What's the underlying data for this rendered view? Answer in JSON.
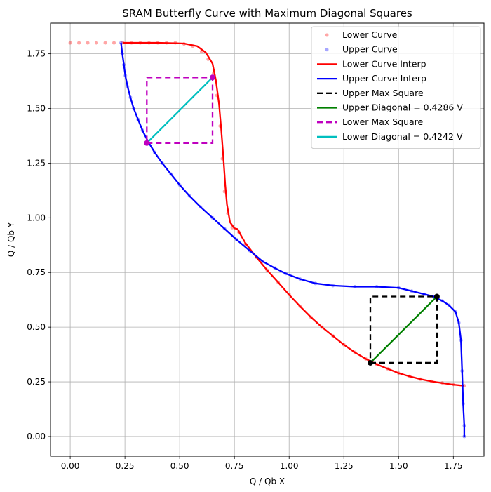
{
  "chart_data": {
    "type": "line",
    "title": "SRAM Butterfly Curve with Maximum Diagonal Squares",
    "xlabel": "Q / Qb X",
    "ylabel": "Q / Qb Y",
    "xlim": [
      -0.09,
      1.89
    ],
    "ylim": [
      -0.09,
      1.89
    ],
    "x_ticks": [
      "0.00",
      "0.25",
      "0.50",
      "0.75",
      "1.00",
      "1.25",
      "1.50",
      "1.75"
    ],
    "y_ticks": [
      "0.00",
      "0.25",
      "0.50",
      "0.75",
      "1.00",
      "1.25",
      "1.50",
      "1.75"
    ],
    "grid": true,
    "legend_position": "upper-right",
    "colors": {
      "lower": "#ff0000",
      "upper": "#0000ff",
      "upper_square": "#000000",
      "upper_diag": "#008000",
      "lower_square": "#bf00bf",
      "lower_diag": "#00bfbf"
    },
    "series": [
      {
        "name": "Lower Curve",
        "kind": "markers",
        "color": "#ff0000",
        "points": [
          [
            0.0,
            1.8
          ],
          [
            0.04,
            1.8
          ],
          [
            0.08,
            1.8
          ],
          [
            0.12,
            1.8
          ],
          [
            0.16,
            1.8
          ],
          [
            0.2,
            1.8
          ],
          [
            0.24,
            1.8
          ],
          [
            0.28,
            1.8
          ],
          [
            0.32,
            1.8
          ],
          [
            0.36,
            1.8
          ],
          [
            0.4,
            1.8
          ],
          [
            0.44,
            1.8
          ],
          [
            0.48,
            1.8
          ],
          [
            0.52,
            1.795
          ],
          [
            0.56,
            1.785
          ],
          [
            0.6,
            1.76
          ],
          [
            0.63,
            1.725
          ],
          [
            0.655,
            1.66
          ],
          [
            0.67,
            1.56
          ],
          [
            0.685,
            1.42
          ],
          [
            0.695,
            1.27
          ],
          [
            0.705,
            1.12
          ],
          [
            0.72,
            1.02
          ],
          [
            0.74,
            0.955
          ],
          [
            0.77,
            0.935
          ],
          [
            0.8,
            0.88
          ],
          [
            0.85,
            0.82
          ],
          [
            0.9,
            0.76
          ],
          [
            0.95,
            0.705
          ],
          [
            1.0,
            0.65
          ],
          [
            1.05,
            0.595
          ],
          [
            1.1,
            0.545
          ],
          [
            1.15,
            0.5
          ],
          [
            1.2,
            0.46
          ],
          [
            1.25,
            0.42
          ],
          [
            1.3,
            0.385
          ],
          [
            1.35,
            0.355
          ],
          [
            1.4,
            0.33
          ],
          [
            1.45,
            0.31
          ],
          [
            1.5,
            0.29
          ],
          [
            1.55,
            0.275
          ],
          [
            1.6,
            0.262
          ],
          [
            1.65,
            0.252
          ],
          [
            1.7,
            0.245
          ],
          [
            1.75,
            0.238
          ],
          [
            1.8,
            0.232
          ]
        ]
      },
      {
        "name": "Upper Curve",
        "kind": "markers",
        "color": "#0000ff",
        "points": [
          [
            0.232,
            1.8
          ],
          [
            0.238,
            1.75
          ],
          [
            0.245,
            1.7
          ],
          [
            0.252,
            1.65
          ],
          [
            0.262,
            1.6
          ],
          [
            0.275,
            1.55
          ],
          [
            0.29,
            1.5
          ],
          [
            0.31,
            1.45
          ],
          [
            0.33,
            1.4
          ],
          [
            0.355,
            1.35
          ],
          [
            0.385,
            1.3
          ],
          [
            0.42,
            1.25
          ],
          [
            0.46,
            1.2
          ],
          [
            0.5,
            1.15
          ],
          [
            0.545,
            1.1
          ],
          [
            0.595,
            1.05
          ],
          [
            0.65,
            1.0
          ],
          [
            0.705,
            0.95
          ],
          [
            0.76,
            0.9
          ],
          [
            0.82,
            0.85
          ],
          [
            0.88,
            0.8
          ],
          [
            0.935,
            0.77
          ],
          [
            0.985,
            0.745
          ],
          [
            1.05,
            0.72
          ],
          [
            1.12,
            0.7
          ],
          [
            1.2,
            0.69
          ],
          [
            1.3,
            0.685
          ],
          [
            1.4,
            0.685
          ],
          [
            1.5,
            0.68
          ],
          [
            1.56,
            0.665
          ],
          [
            1.62,
            0.65
          ],
          [
            1.66,
            0.64
          ],
          [
            1.7,
            0.62
          ],
          [
            1.73,
            0.6
          ],
          [
            1.76,
            0.57
          ],
          [
            1.775,
            0.52
          ],
          [
            1.785,
            0.44
          ],
          [
            1.79,
            0.3
          ],
          [
            1.795,
            0.15
          ],
          [
            1.8,
            0.05
          ],
          [
            1.8,
            0.0
          ]
        ]
      },
      {
        "name": "Lower Curve Interp",
        "kind": "line",
        "color": "#ff0000",
        "points": [
          [
            0.24,
            1.8
          ],
          [
            0.4,
            1.8
          ],
          [
            0.52,
            1.797
          ],
          [
            0.58,
            1.785
          ],
          [
            0.62,
            1.755
          ],
          [
            0.65,
            1.705
          ],
          [
            0.665,
            1.63
          ],
          [
            0.68,
            1.52
          ],
          [
            0.69,
            1.4
          ],
          [
            0.7,
            1.27
          ],
          [
            0.708,
            1.15
          ],
          [
            0.716,
            1.06
          ],
          [
            0.73,
            0.98
          ],
          [
            0.75,
            0.952
          ],
          [
            0.765,
            0.948
          ],
          [
            0.78,
            0.92
          ],
          [
            0.8,
            0.885
          ],
          [
            0.85,
            0.82
          ],
          [
            0.9,
            0.76
          ],
          [
            0.95,
            0.705
          ],
          [
            1.0,
            0.648
          ],
          [
            1.05,
            0.595
          ],
          [
            1.1,
            0.545
          ],
          [
            1.15,
            0.5
          ],
          [
            1.2,
            0.46
          ],
          [
            1.25,
            0.42
          ],
          [
            1.3,
            0.385
          ],
          [
            1.35,
            0.355
          ],
          [
            1.4,
            0.33
          ],
          [
            1.45,
            0.31
          ],
          [
            1.5,
            0.29
          ],
          [
            1.55,
            0.275
          ],
          [
            1.6,
            0.262
          ],
          [
            1.65,
            0.252
          ],
          [
            1.7,
            0.244
          ],
          [
            1.75,
            0.237
          ],
          [
            1.8,
            0.232
          ]
        ]
      },
      {
        "name": "Upper Curve Interp",
        "kind": "line",
        "color": "#0000ff",
        "points": [
          [
            0.232,
            1.8
          ],
          [
            0.238,
            1.75
          ],
          [
            0.245,
            1.7
          ],
          [
            0.252,
            1.65
          ],
          [
            0.262,
            1.6
          ],
          [
            0.275,
            1.55
          ],
          [
            0.29,
            1.5
          ],
          [
            0.31,
            1.45
          ],
          [
            0.33,
            1.4
          ],
          [
            0.355,
            1.35
          ],
          [
            0.385,
            1.3
          ],
          [
            0.42,
            1.25
          ],
          [
            0.46,
            1.2
          ],
          [
            0.5,
            1.15
          ],
          [
            0.545,
            1.1
          ],
          [
            0.595,
            1.05
          ],
          [
            0.65,
            1.0
          ],
          [
            0.705,
            0.95
          ],
          [
            0.76,
            0.9
          ],
          [
            0.82,
            0.85
          ],
          [
            0.88,
            0.8
          ],
          [
            0.935,
            0.77
          ],
          [
            0.985,
            0.745
          ],
          [
            1.05,
            0.72
          ],
          [
            1.12,
            0.7
          ],
          [
            1.2,
            0.69
          ],
          [
            1.3,
            0.685
          ],
          [
            1.4,
            0.685
          ],
          [
            1.5,
            0.68
          ],
          [
            1.56,
            0.665
          ],
          [
            1.62,
            0.65
          ],
          [
            1.66,
            0.64
          ],
          [
            1.7,
            0.62
          ],
          [
            1.73,
            0.6
          ],
          [
            1.76,
            0.57
          ],
          [
            1.775,
            0.52
          ],
          [
            1.785,
            0.44
          ],
          [
            1.79,
            0.3
          ],
          [
            1.795,
            0.15
          ],
          [
            1.8,
            0.05
          ],
          [
            1.8,
            0.0
          ]
        ]
      },
      {
        "name": "Upper Max Square",
        "kind": "dashed",
        "color": "#000000",
        "points": [
          [
            1.371,
            0.337
          ],
          [
            1.675,
            0.337
          ],
          [
            1.675,
            0.64
          ],
          [
            1.371,
            0.64
          ],
          [
            1.371,
            0.337
          ]
        ]
      },
      {
        "name": "Upper Diagonal = 0.4286 V",
        "kind": "line",
        "color": "#008000",
        "points": [
          [
            1.371,
            0.337
          ],
          [
            1.675,
            0.64
          ]
        ]
      },
      {
        "name": "Lower Max Square",
        "kind": "dashed",
        "color": "#bf00bf",
        "points": [
          [
            0.35,
            1.342
          ],
          [
            0.65,
            1.342
          ],
          [
            0.65,
            1.642
          ],
          [
            0.35,
            1.642
          ],
          [
            0.35,
            1.342
          ]
        ]
      },
      {
        "name": "Lower Diagonal = 0.4242 V",
        "kind": "line",
        "color": "#00bfbf",
        "points": [
          [
            0.35,
            1.342
          ],
          [
            0.65,
            1.642
          ]
        ]
      }
    ],
    "corner_points": {
      "upper": {
        "color": "#000000",
        "points": [
          [
            1.371,
            0.337
          ],
          [
            1.675,
            0.64
          ]
        ]
      },
      "lower": {
        "color": "#bf00bf",
        "points": [
          [
            0.35,
            1.342
          ],
          [
            0.65,
            1.642
          ]
        ]
      }
    }
  }
}
